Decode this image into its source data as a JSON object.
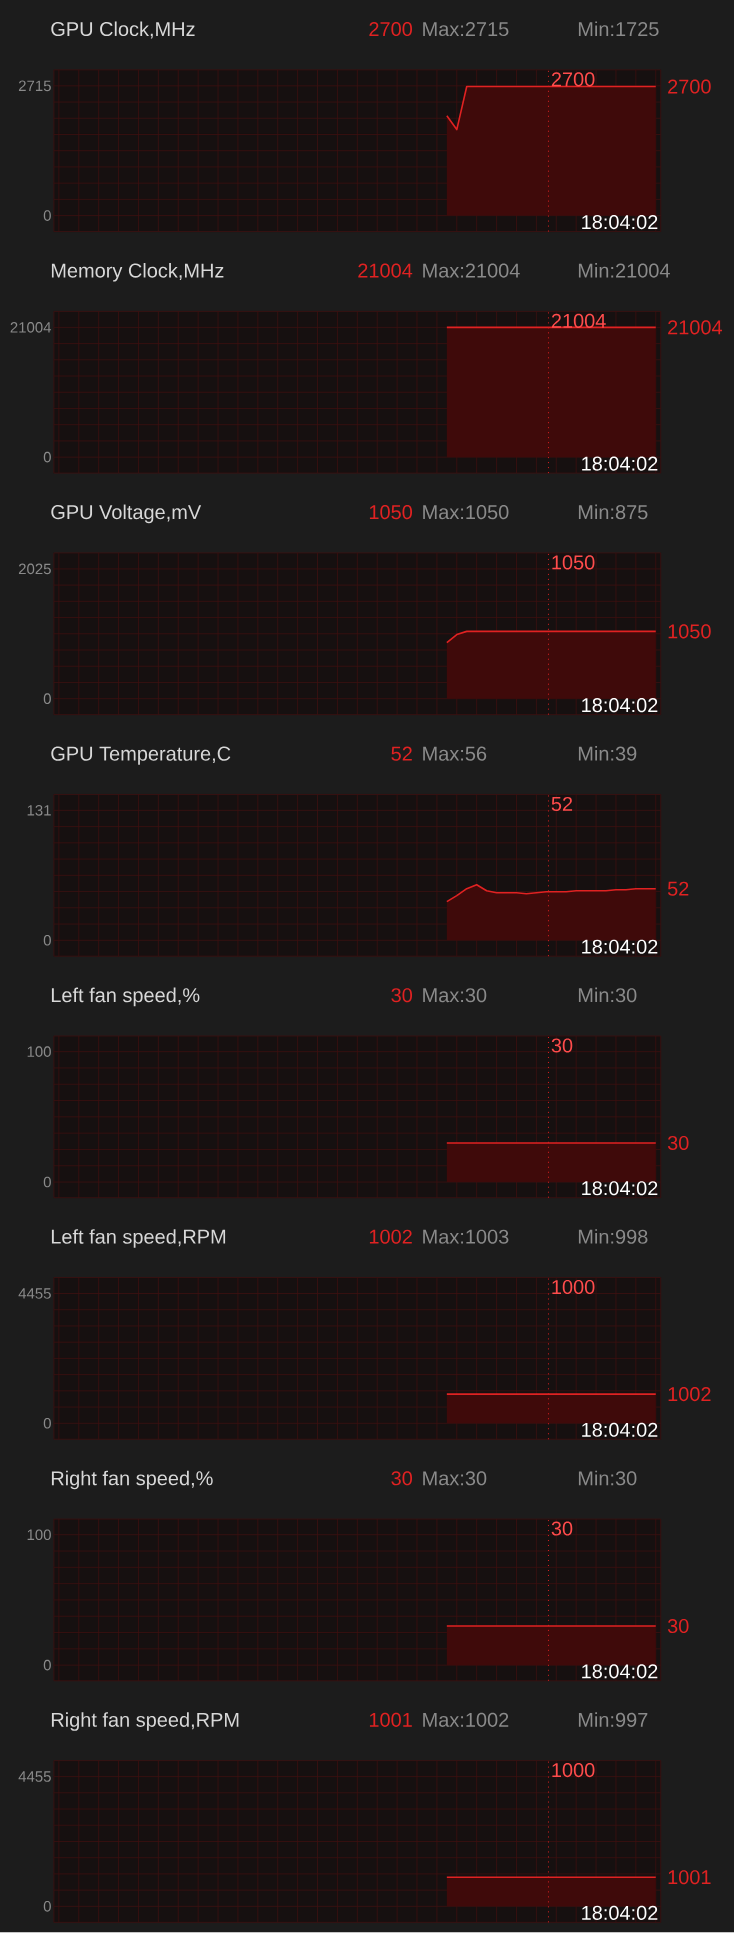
{
  "chart_data": [
    {
      "type": "area",
      "title": "GPU Clock,MHz",
      "color": "#e02222",
      "categories": [
        null,
        null,
        null,
        null,
        null,
        null,
        null,
        null,
        null,
        null,
        null,
        null,
        null,
        null,
        null,
        null,
        null,
        null,
        null,
        null,
        null,
        null,
        null,
        null,
        null,
        null,
        null,
        null,
        null,
        null,
        null,
        null,
        null,
        null,
        null,
        null,
        null,
        null,
        null,
        null,
        null,
        null,
        null,
        null,
        null,
        null,
        null,
        null,
        null,
        null,
        null,
        null,
        null,
        null,
        null,
        null,
        null,
        null,
        null,
        null,
        null
      ],
      "values": [
        null,
        null,
        null,
        null,
        null,
        null,
        null,
        null,
        null,
        null,
        null,
        null,
        null,
        null,
        null,
        null,
        null,
        null,
        null,
        null,
        null,
        null,
        null,
        null,
        null,
        null,
        null,
        null,
        null,
        null,
        null,
        null,
        null,
        null,
        null,
        null,
        null,
        null,
        null,
        2090,
        1800,
        2700,
        2700,
        2700,
        2700,
        2700,
        2700,
        2700,
        2700,
        2700,
        2700,
        2700,
        2700,
        2700,
        2700,
        2700,
        2700,
        2700,
        2700,
        2700,
        2700
      ],
      "ylim": [
        -334,
        3049
      ],
      "yticks": [
        0,
        2715
      ],
      "tick_labels": "y",
      "grid": true,
      "annotations": [
        "2700",
        "Max:2715",
        "Min:1725",
        "18:04:02",
        "2700",
        "2700"
      ]
    },
    {
      "type": "area",
      "title": "Memory Clock,MHz",
      "color": "#e02222",
      "categories": [
        null,
        null,
        null,
        null,
        null,
        null,
        null,
        null,
        null,
        null,
        null,
        null,
        null,
        null,
        null,
        null,
        null,
        null,
        null,
        null,
        null,
        null,
        null,
        null,
        null,
        null,
        null,
        null,
        null,
        null,
        null,
        null,
        null,
        null,
        null,
        null,
        null,
        null,
        null,
        null,
        null,
        null,
        null,
        null,
        null,
        null,
        null,
        null,
        null,
        null,
        null,
        null,
        null,
        null,
        null,
        null,
        null,
        null,
        null,
        null,
        null
      ],
      "values": [
        null,
        null,
        null,
        null,
        null,
        null,
        null,
        null,
        null,
        null,
        null,
        null,
        null,
        null,
        null,
        null,
        null,
        null,
        null,
        null,
        null,
        null,
        null,
        null,
        null,
        null,
        null,
        null,
        null,
        null,
        null,
        null,
        null,
        null,
        null,
        null,
        null,
        null,
        null,
        21004,
        21004,
        21004,
        21004,
        21004,
        21004,
        21004,
        21004,
        21004,
        21004,
        21004,
        21004,
        21004,
        21004,
        21004,
        21004,
        21004,
        21004,
        21004,
        21004,
        21004,
        21004
      ],
      "ylim": [
        -2584,
        23588
      ],
      "yticks": [
        0,
        21004
      ],
      "tick_labels": "y",
      "grid": true,
      "annotations": [
        "21004",
        "Max:21004",
        "Min:21004",
        "18:04:02",
        "21004",
        "21004"
      ]
    },
    {
      "type": "area",
      "title": "GPU Voltage,mV",
      "color": "#e02222",
      "categories": [
        null,
        null,
        null,
        null,
        null,
        null,
        null,
        null,
        null,
        null,
        null,
        null,
        null,
        null,
        null,
        null,
        null,
        null,
        null,
        null,
        null,
        null,
        null,
        null,
        null,
        null,
        null,
        null,
        null,
        null,
        null,
        null,
        null,
        null,
        null,
        null,
        null,
        null,
        null,
        null,
        null,
        null,
        null,
        null,
        null,
        null,
        null,
        null,
        null,
        null,
        null,
        null,
        null,
        null,
        null,
        null,
        null,
        null,
        null,
        null,
        null
      ],
      "values": [
        null,
        null,
        null,
        null,
        null,
        null,
        null,
        null,
        null,
        null,
        null,
        null,
        null,
        null,
        null,
        null,
        null,
        null,
        null,
        null,
        null,
        null,
        null,
        null,
        null,
        null,
        null,
        null,
        null,
        null,
        null,
        null,
        null,
        null,
        null,
        null,
        null,
        null,
        null,
        875,
        1000,
        1050,
        1050,
        1050,
        1050,
        1050,
        1050,
        1050,
        1050,
        1050,
        1050,
        1050,
        1050,
        1050,
        1050,
        1050,
        1050,
        1050,
        1050,
        1050,
        1050
      ],
      "ylim": [
        -249,
        2274
      ],
      "yticks": [
        0,
        2025
      ],
      "tick_labels": "y",
      "grid": true,
      "annotations": [
        "1050",
        "Max:1050",
        "Min:875",
        "18:04:02",
        "1050",
        "1050"
      ]
    },
    {
      "type": "area",
      "title": "GPU Temperature,C",
      "color": "#e02222",
      "categories": [
        null,
        null,
        null,
        null,
        null,
        null,
        null,
        null,
        null,
        null,
        null,
        null,
        null,
        null,
        null,
        null,
        null,
        null,
        null,
        null,
        null,
        null,
        null,
        null,
        null,
        null,
        null,
        null,
        null,
        null,
        null,
        null,
        null,
        null,
        null,
        null,
        null,
        null,
        null,
        null,
        null,
        null,
        null,
        null,
        null,
        null,
        null,
        null,
        null,
        null,
        null,
        null,
        null,
        null,
        null,
        null,
        null,
        null,
        null,
        null,
        null
      ],
      "values": [
        null,
        null,
        null,
        null,
        null,
        null,
        null,
        null,
        null,
        null,
        null,
        null,
        null,
        null,
        null,
        null,
        null,
        null,
        null,
        null,
        null,
        null,
        null,
        null,
        null,
        null,
        null,
        null,
        null,
        null,
        null,
        null,
        null,
        null,
        null,
        null,
        null,
        null,
        null,
        39,
        45,
        52,
        56,
        50,
        48,
        48,
        48,
        47,
        48,
        49,
        49,
        49,
        50,
        50,
        50,
        50,
        51,
        51,
        52,
        52,
        52
      ],
      "ylim": [
        -16,
        147
      ],
      "yticks": [
        0,
        131
      ],
      "tick_labels": "y",
      "grid": true,
      "annotations": [
        "52",
        "Max:56",
        "Min:39",
        "18:04:02",
        "52",
        "52"
      ]
    },
    {
      "type": "area",
      "title": "Left fan speed,%",
      "color": "#e02222",
      "categories": [
        null,
        null,
        null,
        null,
        null,
        null,
        null,
        null,
        null,
        null,
        null,
        null,
        null,
        null,
        null,
        null,
        null,
        null,
        null,
        null,
        null,
        null,
        null,
        null,
        null,
        null,
        null,
        null,
        null,
        null,
        null,
        null,
        null,
        null,
        null,
        null,
        null,
        null,
        null,
        null,
        null,
        null,
        null,
        null,
        null,
        null,
        null,
        null,
        null,
        null,
        null,
        null,
        null,
        null,
        null,
        null,
        null,
        null,
        null,
        null,
        null
      ],
      "values": [
        null,
        null,
        null,
        null,
        null,
        null,
        null,
        null,
        null,
        null,
        null,
        null,
        null,
        null,
        null,
        null,
        null,
        null,
        null,
        null,
        null,
        null,
        null,
        null,
        null,
        null,
        null,
        null,
        null,
        null,
        null,
        null,
        null,
        null,
        null,
        null,
        null,
        null,
        null,
        30,
        30,
        30,
        30,
        30,
        30,
        30,
        30,
        30,
        30,
        30,
        30,
        30,
        30,
        30,
        30,
        30,
        30,
        30,
        30,
        30,
        30
      ],
      "ylim": [
        -12,
        112
      ],
      "yticks": [
        0,
        100
      ],
      "tick_labels": "y",
      "grid": true,
      "annotations": [
        "30",
        "Max:30",
        "Min:30",
        "18:04:02",
        "30",
        "30"
      ]
    },
    {
      "type": "area",
      "title": "Left fan speed,RPM",
      "color": "#e02222",
      "categories": [
        null,
        null,
        null,
        null,
        null,
        null,
        null,
        null,
        null,
        null,
        null,
        null,
        null,
        null,
        null,
        null,
        null,
        null,
        null,
        null,
        null,
        null,
        null,
        null,
        null,
        null,
        null,
        null,
        null,
        null,
        null,
        null,
        null,
        null,
        null,
        null,
        null,
        null,
        null,
        null,
        null,
        null,
        null,
        null,
        null,
        null,
        null,
        null,
        null,
        null,
        null,
        null,
        null,
        null,
        null,
        null,
        null,
        null,
        null,
        null,
        null
      ],
      "values": [
        null,
        null,
        null,
        null,
        null,
        null,
        null,
        null,
        null,
        null,
        null,
        null,
        null,
        null,
        null,
        null,
        null,
        null,
        null,
        null,
        null,
        null,
        null,
        null,
        null,
        null,
        null,
        null,
        null,
        null,
        null,
        null,
        null,
        null,
        null,
        null,
        null,
        null,
        null,
        1000,
        1000,
        1000,
        1000,
        1000,
        1000,
        1000,
        1000,
        1000,
        1000,
        1000,
        1000,
        1000,
        1000,
        1000,
        1000,
        1000,
        1000,
        1000,
        1000,
        1000,
        1002
      ],
      "ylim": [
        -548,
        5003
      ],
      "yticks": [
        0,
        4455
      ],
      "tick_labels": "y",
      "grid": true,
      "annotations": [
        "1002",
        "Max:1003",
        "Min:998",
        "18:04:02",
        "1000",
        "1002"
      ]
    },
    {
      "type": "area",
      "title": "Right fan speed,%",
      "color": "#e02222",
      "categories": [
        null,
        null,
        null,
        null,
        null,
        null,
        null,
        null,
        null,
        null,
        null,
        null,
        null,
        null,
        null,
        null,
        null,
        null,
        null,
        null,
        null,
        null,
        null,
        null,
        null,
        null,
        null,
        null,
        null,
        null,
        null,
        null,
        null,
        null,
        null,
        null,
        null,
        null,
        null,
        null,
        null,
        null,
        null,
        null,
        null,
        null,
        null,
        null,
        null,
        null,
        null,
        null,
        null,
        null,
        null,
        null,
        null,
        null,
        null,
        null,
        null
      ],
      "values": [
        null,
        null,
        null,
        null,
        null,
        null,
        null,
        null,
        null,
        null,
        null,
        null,
        null,
        null,
        null,
        null,
        null,
        null,
        null,
        null,
        null,
        null,
        null,
        null,
        null,
        null,
        null,
        null,
        null,
        null,
        null,
        null,
        null,
        null,
        null,
        null,
        null,
        null,
        null,
        30,
        30,
        30,
        30,
        30,
        30,
        30,
        30,
        30,
        30,
        30,
        30,
        30,
        30,
        30,
        30,
        30,
        30,
        30,
        30,
        30,
        30
      ],
      "ylim": [
        -12,
        112
      ],
      "yticks": [
        0,
        100
      ],
      "tick_labels": "y",
      "grid": true,
      "annotations": [
        "30",
        "Max:30",
        "Min:30",
        "18:04:02",
        "30",
        "30"
      ]
    },
    {
      "type": "area",
      "title": "Right fan speed,RPM",
      "color": "#e02222",
      "categories": [
        null,
        null,
        null,
        null,
        null,
        null,
        null,
        null,
        null,
        null,
        null,
        null,
        null,
        null,
        null,
        null,
        null,
        null,
        null,
        null,
        null,
        null,
        null,
        null,
        null,
        null,
        null,
        null,
        null,
        null,
        null,
        null,
        null,
        null,
        null,
        null,
        null,
        null,
        null,
        null,
        null,
        null,
        null,
        null,
        null,
        null,
        null,
        null,
        null,
        null,
        null,
        null,
        null,
        null,
        null,
        null,
        null,
        null,
        null,
        null,
        null
      ],
      "values": [
        null,
        null,
        null,
        null,
        null,
        null,
        null,
        null,
        null,
        null,
        null,
        null,
        null,
        null,
        null,
        null,
        null,
        null,
        null,
        null,
        null,
        null,
        null,
        null,
        null,
        null,
        null,
        null,
        null,
        null,
        null,
        null,
        null,
        null,
        null,
        null,
        null,
        null,
        null,
        1000,
        1000,
        1000,
        1000,
        1000,
        1000,
        1000,
        1000,
        1000,
        1000,
        1000,
        1000,
        1000,
        1000,
        1000,
        1000,
        1000,
        1000,
        1000,
        1000,
        1000,
        1001
      ],
      "ylim": [
        -548,
        5003
      ],
      "yticks": [
        0,
        4455
      ],
      "tick_labels": "y",
      "grid": true,
      "annotations": [
        "1001",
        "Max:1002",
        "Min:997",
        "18:04:02",
        "1000",
        "1001"
      ]
    }
  ]
}
